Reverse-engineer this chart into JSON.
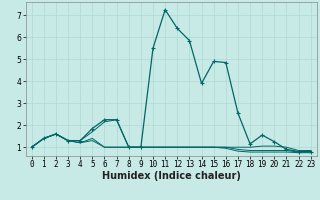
{
  "xlabel": "Humidex (Indice chaleur)",
  "background_color": "#c8eae6",
  "grid_color": "#b0d8d4",
  "line_color": "#006666",
  "xlim": [
    -0.5,
    23.5
  ],
  "ylim": [
    0.6,
    7.6
  ],
  "x_ticks": [
    0,
    1,
    2,
    3,
    4,
    5,
    6,
    7,
    8,
    9,
    10,
    11,
    12,
    13,
    14,
    15,
    16,
    17,
    18,
    19,
    20,
    21,
    22,
    23
  ],
  "y_ticks": [
    1,
    2,
    3,
    4,
    5,
    6,
    7
  ],
  "series": [
    {
      "y": [
        1.0,
        1.4,
        1.6,
        1.3,
        1.3,
        1.85,
        2.25,
        2.25,
        1.0,
        1.0,
        5.5,
        7.25,
        6.4,
        5.85,
        3.9,
        4.9,
        4.85,
        2.55,
        1.15,
        1.55,
        1.25,
        0.9,
        0.8,
        0.8
      ],
      "marker": true
    },
    {
      "y": [
        1.0,
        1.4,
        1.6,
        1.3,
        1.3,
        1.7,
        2.15,
        2.25,
        1.0,
        1.0,
        1.0,
        1.0,
        1.0,
        1.0,
        1.0,
        1.0,
        1.0,
        1.0,
        1.0,
        1.05,
        1.05,
        1.0,
        0.85,
        0.85
      ],
      "marker": false
    },
    {
      "y": [
        1.0,
        1.4,
        1.6,
        1.3,
        1.2,
        1.4,
        1.0,
        1.0,
        1.0,
        1.0,
        1.0,
        1.0,
        1.0,
        1.0,
        1.0,
        1.0,
        1.0,
        0.9,
        0.85,
        0.85,
        0.85,
        0.85,
        0.78,
        0.78
      ],
      "marker": false
    },
    {
      "y": [
        1.0,
        1.4,
        1.6,
        1.3,
        1.2,
        1.3,
        1.0,
        1.0,
        1.0,
        1.0,
        1.0,
        1.0,
        1.0,
        1.0,
        1.0,
        1.0,
        0.95,
        0.82,
        0.78,
        0.78,
        0.78,
        0.78,
        0.75,
        0.75
      ],
      "marker": false
    }
  ],
  "fontsize_tick": 5.5,
  "fontsize_xlabel": 7,
  "lw_main": 0.9,
  "lw_other": 0.7
}
